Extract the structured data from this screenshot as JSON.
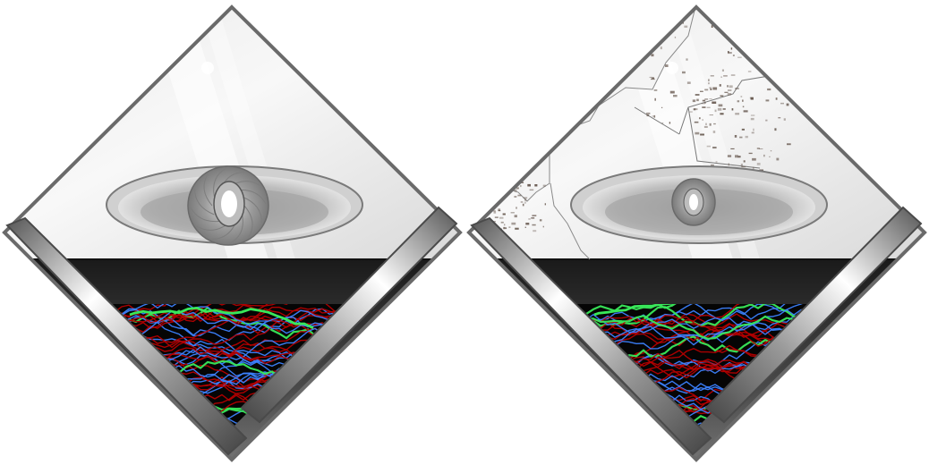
{
  "panels": [
    {
      "id": "left",
      "variant": "clean",
      "eye_size": "large"
    },
    {
      "id": "right",
      "variant": "with-map-overlay",
      "eye_size": "small"
    }
  ],
  "colors": {
    "background": "#ffffff",
    "frame": "#6a6a6a",
    "sky_light": "#f2f2f2",
    "sky_mid": "#d6d6d6",
    "band_dark": "#1e1e1e",
    "band_mid": "#6f6f6f",
    "eye_outer": "#c8c8c8",
    "eye_inner": "#a8a8a8",
    "pupil": "#ffffff",
    "wave_green": "#39e85a",
    "wave_red": "#b40000",
    "wave_blue": "#3c82ff",
    "map_stain": "#5a4a40"
  },
  "icons": [
    "eye-icon",
    "diamond-frame",
    "wave-field",
    "map-overlay"
  ]
}
